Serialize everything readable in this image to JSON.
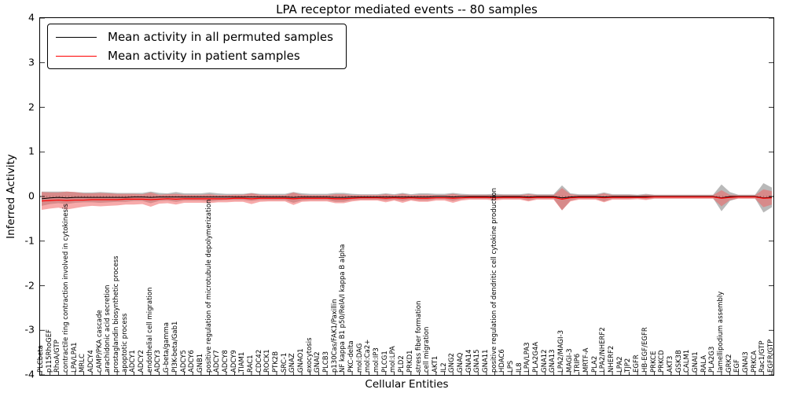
{
  "chart_data": {
    "type": "line",
    "title": "LPA receptor mediated events -- 80 samples",
    "xlabel": "Cellular Entities",
    "ylabel": "Inferred Activity",
    "ylim": [
      -4,
      4
    ],
    "yticks": [
      -4,
      -3,
      -2,
      -1,
      0,
      1,
      2,
      3,
      4
    ],
    "legend_position": "upper left",
    "grid": false,
    "legend": [
      "Mean activity in all permuted samples",
      "Mean activity in patient samples"
    ],
    "colors": {
      "permuted_line": "#000000",
      "patient_line": "#ff0000",
      "permuted_band": "rgba(100,100,100,0.45)",
      "patient_band": "rgba(240,100,100,0.55)",
      "zero_line": "#000000"
    },
    "categories": [
      "PLCbeta",
      "p115RhoGEF",
      "RhoA/GTP",
      "contractile ring contraction involved in cytokinesis",
      "LPA/LPA1",
      "MRLC",
      "ADCY4",
      "cAMP/PKA cascade",
      "arachidonic acid secretion",
      "prostaglandin biosynthetic process",
      "apoptotic process",
      "ADCY1",
      "ADCY2",
      "endothelial cell migration",
      "ADCY3",
      "G-beta/gamma",
      "PI3K-beta/Gab1",
      "ADCY5",
      "ADCY6",
      "GNB1",
      "positive regulation of microtubule depolymerization",
      "ADCY7",
      "ADCY8",
      "ADCY9",
      "TIAM1",
      "RAC1",
      "CDC42",
      "ROCK1",
      "PTK2B",
      "SRC-1",
      "GNAZ",
      "GNAO1",
      "exocytosis",
      "GNAI2",
      "PLCB3",
      "p130Cas/FAK1/Paxillin",
      "NF kappa B1 p50/RelA/I kappa B alpha",
      "PKC-delta",
      "mol:DAG",
      "mol:Ca2+",
      "mol:IP3",
      "PLCG1",
      "mol:LPA",
      "PLD2",
      "PRKD1",
      "stress fiber formation",
      "cell migration",
      "AKT1",
      "IL2",
      "GNG2",
      "GNAQ",
      "GNA14",
      "GNA15",
      "GNA11",
      "positive regulation of dendritic cell cytokine production",
      "HDAC6",
      "LPS",
      "IL8",
      "LPA/LPA3",
      "PLA2G4A",
      "GNA12",
      "GNA13",
      "LPA2/MAGI-3",
      "MAGI-3",
      "TRIP6",
      "MRTF-A",
      "PLA2",
      "LPA2/NHERF2",
      "NHERF2",
      "LPA2",
      "TJP2",
      "EGFR",
      "HB-EGF/EGFR",
      "PRKCE",
      "PRKCD",
      "AKT3",
      "GSK3B",
      "CALM1",
      "GNAI1",
      "RALA",
      "PLA2G3",
      "lamellipodium assembly",
      "GRK2",
      "EGF",
      "GNAI3",
      "PRKCA",
      "Rac1/GTP",
      "EGFR/GTP"
    ],
    "series": [
      {
        "name": "Mean activity in all permuted samples",
        "values": [
          -0.05,
          -0.03,
          -0.02,
          -0.03,
          -0.02,
          -0.02,
          -0.02,
          -0.02,
          -0.02,
          -0.02,
          -0.02,
          -0.01,
          -0.01,
          -0.02,
          -0.01,
          -0.01,
          -0.01,
          -0.01,
          -0.01,
          -0.01,
          -0.01,
          -0.01,
          -0.01,
          -0.01,
          -0.01,
          -0.01,
          -0.01,
          -0.01,
          -0.01,
          -0.01,
          -0.02,
          -0.01,
          -0.01,
          -0.01,
          -0.01,
          -0.02,
          -0.02,
          -0.01,
          -0.01,
          -0.01,
          -0.01,
          -0.01,
          -0.01,
          -0.01,
          -0.01,
          -0.01,
          -0.01,
          0,
          0,
          -0.01,
          0,
          0,
          0,
          0,
          0,
          0,
          0,
          0,
          -0.01,
          0,
          0,
          0,
          -0.03,
          -0.01,
          0,
          0,
          0,
          -0.01,
          0,
          0,
          0,
          0,
          0,
          0,
          0,
          0,
          0,
          0,
          0,
          0,
          0,
          -0.03,
          0,
          0,
          0,
          0,
          -0.03,
          -0.02
        ],
        "band_halfwidth": [
          0.16,
          0.14,
          0.13,
          0.14,
          0.12,
          0.11,
          0.11,
          0.12,
          0.11,
          0.1,
          0.1,
          0.09,
          0.09,
          0.13,
          0.09,
          0.08,
          0.11,
          0.08,
          0.08,
          0.08,
          0.1,
          0.08,
          0.07,
          0.07,
          0.07,
          0.09,
          0.07,
          0.07,
          0.07,
          0.07,
          0.12,
          0.08,
          0.07,
          0.07,
          0.07,
          0.1,
          0.1,
          0.07,
          0.06,
          0.06,
          0.06,
          0.08,
          0.06,
          0.09,
          0.06,
          0.08,
          0.08,
          0.06,
          0.06,
          0.09,
          0.06,
          0.05,
          0.05,
          0.05,
          0.06,
          0.05,
          0.05,
          0.05,
          0.08,
          0.05,
          0.05,
          0.05,
          0.28,
          0.08,
          0.05,
          0.05,
          0.05,
          0.1,
          0.05,
          0.05,
          0.05,
          0.04,
          0.06,
          0.04,
          0.04,
          0.04,
          0.04,
          0.04,
          0.04,
          0.04,
          0.04,
          0.3,
          0.1,
          0.04,
          0.04,
          0.04,
          0.33,
          0.22
        ]
      },
      {
        "name": "Mean activity in patient samples",
        "values": [
          -0.1,
          -0.09,
          -0.08,
          -0.09,
          -0.08,
          -0.08,
          -0.07,
          -0.07,
          -0.07,
          -0.07,
          -0.06,
          -0.06,
          -0.06,
          -0.07,
          -0.06,
          -0.05,
          -0.06,
          -0.05,
          -0.05,
          -0.05,
          -0.05,
          -0.05,
          -0.05,
          -0.04,
          -0.04,
          -0.05,
          -0.04,
          -0.04,
          -0.04,
          -0.04,
          -0.05,
          -0.04,
          -0.04,
          -0.04,
          -0.04,
          -0.05,
          -0.05,
          -0.04,
          -0.03,
          -0.03,
          -0.03,
          -0.04,
          -0.03,
          -0.04,
          -0.03,
          -0.04,
          -0.04,
          -0.03,
          -0.03,
          -0.04,
          -0.03,
          -0.02,
          -0.02,
          -0.02,
          -0.03,
          -0.02,
          -0.02,
          -0.02,
          -0.03,
          -0.02,
          -0.02,
          -0.02,
          -0.06,
          -0.03,
          -0.02,
          -0.02,
          -0.02,
          -0.03,
          -0.02,
          -0.02,
          -0.02,
          -0.02,
          -0.02,
          -0.01,
          -0.01,
          -0.01,
          -0.01,
          -0.01,
          -0.01,
          -0.01,
          -0.01,
          -0.04,
          -0.02,
          -0.01,
          -0.01,
          -0.01,
          -0.04,
          -0.03
        ],
        "band_halfwidth": [
          0.2,
          0.18,
          0.17,
          0.2,
          0.18,
          0.15,
          0.14,
          0.15,
          0.14,
          0.13,
          0.12,
          0.12,
          0.11,
          0.16,
          0.1,
          0.1,
          0.12,
          0.09,
          0.09,
          0.09,
          0.1,
          0.08,
          0.08,
          0.08,
          0.08,
          0.12,
          0.08,
          0.07,
          0.07,
          0.07,
          0.14,
          0.08,
          0.07,
          0.07,
          0.07,
          0.1,
          0.1,
          0.07,
          0.06,
          0.06,
          0.06,
          0.09,
          0.06,
          0.1,
          0.06,
          0.08,
          0.08,
          0.06,
          0.06,
          0.1,
          0.06,
          0.05,
          0.05,
          0.05,
          0.06,
          0.05,
          0.05,
          0.05,
          0.08,
          0.05,
          0.05,
          0.05,
          0.25,
          0.08,
          0.05,
          0.05,
          0.05,
          0.1,
          0.05,
          0.05,
          0.05,
          0.04,
          0.06,
          0.04,
          0.04,
          0.04,
          0.04,
          0.04,
          0.04,
          0.04,
          0.04,
          0.18,
          0.06,
          0.04,
          0.04,
          0.04,
          0.2,
          0.15
        ]
      }
    ]
  }
}
